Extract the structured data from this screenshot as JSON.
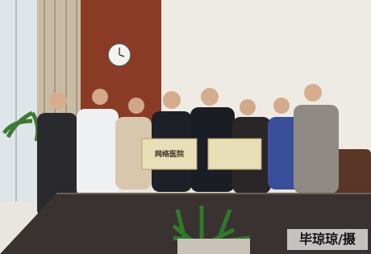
{
  "photo": {
    "caption": "毕琼琼/摄",
    "plaques": [
      {
        "title": "网络医院"
      }
    ]
  }
}
